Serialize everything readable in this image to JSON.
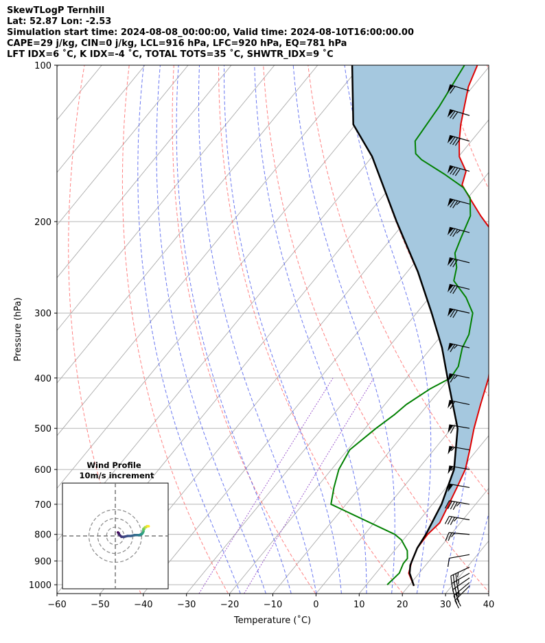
{
  "header": {
    "title": "SkewTLogP Ternhill",
    "location": "Lat: 52.87   Lon: -2.53",
    "times": "Simulation start time: 2024-08-08_00:00:00, Valid time: 2024-08-10T16:00:00.00",
    "indices1": "CAPE=29 j/kg, CIN=0 j/kg, LCL=916 hPa, LFC=920 hPa, EQ=781 hPa",
    "indices2": "LFT IDX=6 ˚C, K IDX=-4 ˚C, TOTAL TOTS=35 ˚C, SHWTR_IDX=9 ˚C"
  },
  "chart_data": {
    "type": "line",
    "subtype": "skew-T log-P diagram",
    "xlabel": "Temperature (˚C)",
    "ylabel": "Pressure (hPa)",
    "xlim": [
      -60,
      40
    ],
    "ylim": [
      1040,
      100
    ],
    "x_ticks": [
      -60,
      -50,
      -40,
      -30,
      -20,
      -10,
      0,
      10,
      20,
      30,
      40
    ],
    "x_tick_labels": [
      "−60",
      "−50",
      "−40",
      "−30",
      "−20",
      "−10",
      "0",
      "10",
      "20",
      "30",
      "40"
    ],
    "y_ticks": [
      1000,
      900,
      800,
      700,
      600,
      500,
      400,
      300,
      200,
      100
    ],
    "y_tick_labels": [
      "1000",
      "900",
      "800",
      "700",
      "600",
      "500",
      "400",
      "300",
      "200",
      "100"
    ],
    "grid": true,
    "colors": {
      "temperature": "#e00000",
      "dewpoint": "#008000",
      "parcel": "#000000",
      "cape_fill": "#a5c8df",
      "cin_fill": "#f08080",
      "dry_adiabat": "#ff6a6a",
      "moist_adiabat": "#4455ee",
      "mixing_ratio": "#9955cc",
      "isotherm_grid": "#aaaaaa"
    },
    "series": [
      {
        "key": "temperature",
        "points": [
          [
            1005,
            21.2
          ],
          [
            950,
            17.6
          ],
          [
            900,
            16.0
          ],
          [
            850,
            14.8
          ],
          [
            800,
            14.6
          ],
          [
            760,
            15.2
          ],
          [
            700,
            13.8
          ],
          [
            650,
            12.5
          ],
          [
            600,
            11.0
          ],
          [
            550,
            8.3
          ],
          [
            500,
            5.2
          ],
          [
            450,
            2.2
          ],
          [
            400,
            -1.0
          ],
          [
            350,
            -5.8
          ],
          [
            300,
            -10.5
          ],
          [
            275,
            -13.6
          ],
          [
            250,
            -17.0
          ],
          [
            225,
            -22.8
          ],
          [
            210,
            -27.6
          ],
          [
            195,
            -33.6
          ],
          [
            180,
            -39.6
          ],
          [
            170,
            -43.8
          ],
          [
            160,
            -45.5
          ],
          [
            150,
            -49.8
          ],
          [
            140,
            -52.8
          ],
          [
            130,
            -55.6
          ],
          [
            120,
            -58.2
          ],
          [
            110,
            -61.0
          ],
          [
            100,
            -63.0
          ]
        ]
      },
      {
        "key": "dewpoint",
        "points": [
          [
            1000,
            14.8
          ],
          [
            950,
            15.4
          ],
          [
            910,
            14.5
          ],
          [
            890,
            14.5
          ],
          [
            860,
            13.0
          ],
          [
            820,
            9.6
          ],
          [
            800,
            7.0
          ],
          [
            700,
            -13.5
          ],
          [
            650,
            -16.0
          ],
          [
            600,
            -18.3
          ],
          [
            550,
            -19.5
          ],
          [
            500,
            -17.5
          ],
          [
            470,
            -15.8
          ],
          [
            450,
            -15.0
          ],
          [
            420,
            -12.5
          ],
          [
            400,
            -9.8
          ],
          [
            380,
            -10.2
          ],
          [
            350,
            -12.8
          ],
          [
            330,
            -13.8
          ],
          [
            300,
            -17.0
          ],
          [
            280,
            -21.5
          ],
          [
            260,
            -27.5
          ],
          [
            245,
            -29.4
          ],
          [
            230,
            -32.5
          ],
          [
            215,
            -34.0
          ],
          [
            195,
            -36.0
          ],
          [
            180,
            -39.5
          ],
          [
            172,
            -43.0
          ],
          [
            162,
            -50.0
          ],
          [
            152,
            -58.0
          ],
          [
            148,
            -60.5
          ],
          [
            140,
            -63.0
          ],
          [
            120,
            -64.0
          ],
          [
            100,
            -66.0
          ]
        ]
      },
      {
        "key": "parcel",
        "points": [
          [
            1005,
            21.2
          ],
          [
            950,
            17.8
          ],
          [
            916,
            16.4
          ],
          [
            850,
            14.8
          ],
          [
            800,
            14.2
          ],
          [
            700,
            12.1
          ],
          [
            600,
            8.4
          ],
          [
            500,
            1.4
          ],
          [
            400,
            -10.5
          ],
          [
            350,
            -17.5
          ],
          [
            300,
            -26.5
          ],
          [
            250,
            -37.5
          ],
          [
            200,
            -52.0
          ],
          [
            150,
            -70.0
          ],
          [
            130,
            -80.5
          ],
          [
            100,
            -92.0
          ]
        ]
      }
    ],
    "dry_adiabats_K": [
      230,
      250,
      270,
      290,
      310,
      330,
      350,
      370,
      390,
      410,
      430,
      450
    ],
    "moist_adiabats_theta_w_C": [
      -20,
      -14,
      -8,
      -2,
      4,
      10,
      16,
      22,
      28,
      34
    ],
    "mixing_ratios_gkg": [
      0.4,
      1
    ],
    "wind_barbs": [
      {
        "p": 1005,
        "speed_kt": 20,
        "dir_deg": 225
      },
      {
        "p": 990,
        "speed_kt": 25,
        "dir_deg": 230
      },
      {
        "p": 970,
        "speed_kt": 30,
        "dir_deg": 235
      },
      {
        "p": 950,
        "speed_kt": 35,
        "dir_deg": 240
      },
      {
        "p": 925,
        "speed_kt": 35,
        "dir_deg": 245
      },
      {
        "p": 875,
        "speed_kt": 10,
        "dir_deg": 260
      },
      {
        "p": 800,
        "speed_kt": 25,
        "dir_deg": 275
      },
      {
        "p": 750,
        "speed_kt": 35,
        "dir_deg": 280
      },
      {
        "p": 700,
        "speed_kt": 45,
        "dir_deg": 280
      },
      {
        "p": 650,
        "speed_kt": 50,
        "dir_deg": 280
      },
      {
        "p": 600,
        "speed_kt": 55,
        "dir_deg": 280
      },
      {
        "p": 550,
        "speed_kt": 55,
        "dir_deg": 280
      },
      {
        "p": 500,
        "speed_kt": 60,
        "dir_deg": 280
      },
      {
        "p": 450,
        "speed_kt": 60,
        "dir_deg": 282
      },
      {
        "p": 400,
        "speed_kt": 65,
        "dir_deg": 282
      },
      {
        "p": 350,
        "speed_kt": 65,
        "dir_deg": 283
      },
      {
        "p": 300,
        "speed_kt": 70,
        "dir_deg": 283
      },
      {
        "p": 270,
        "speed_kt": 70,
        "dir_deg": 284
      },
      {
        "p": 240,
        "speed_kt": 70,
        "dir_deg": 284
      },
      {
        "p": 210,
        "speed_kt": 75,
        "dir_deg": 285
      },
      {
        "p": 185,
        "speed_kt": 75,
        "dir_deg": 285
      },
      {
        "p": 160,
        "speed_kt": 80,
        "dir_deg": 286
      },
      {
        "p": 140,
        "speed_kt": 80,
        "dir_deg": 286
      },
      {
        "p": 125,
        "speed_kt": 70,
        "dir_deg": 287
      },
      {
        "p": 112,
        "speed_kt": 60,
        "dir_deg": 287
      }
    ],
    "hodograph": {
      "title": "Wind Profile",
      "subtitle": "10m/s increment",
      "ring_increment_ms": 10,
      "rings": 3,
      "u_ms": [
        3,
        4,
        4,
        5,
        7,
        10,
        14,
        18,
        22,
        26,
        28,
        29,
        30,
        31,
        32,
        32,
        32,
        32,
        33,
        33,
        34,
        35,
        36,
        37,
        38
      ],
      "v_ms": [
        4,
        3,
        2,
        1,
        -1,
        -1,
        0,
        0,
        1,
        1,
        1,
        2,
        2,
        3,
        5,
        6,
        7,
        8,
        8,
        9,
        10,
        10,
        11,
        11,
        11
      ]
    }
  }
}
